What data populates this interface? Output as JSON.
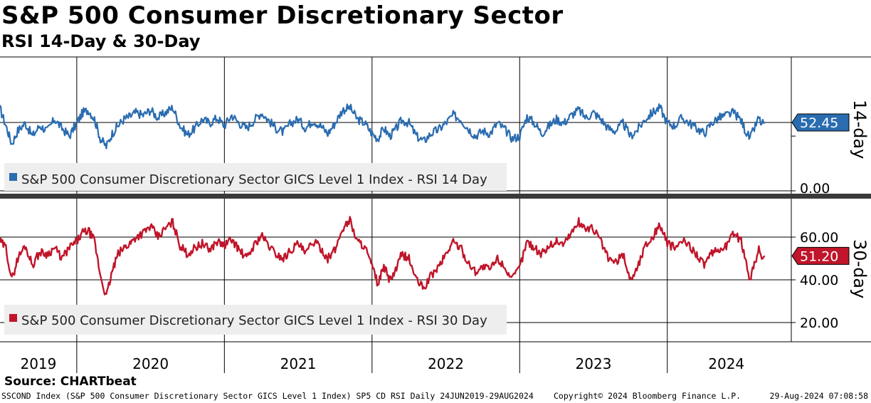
{
  "chart_data": [
    {
      "type": "line",
      "title": "S&P 500 Consumer Discretionary Sector",
      "subtitle": "RSI 14-Day & 30-Day",
      "panel_label": "14-day",
      "series": [
        {
          "name": "S&P 500 Consumer Discretionary Sector GICS Level 1 Index - RSI 14 Day",
          "color": "#2a6cb0",
          "last_value": "52.45",
          "points": [
            [
              2019.48,
              63
            ],
            [
              2019.52,
              50
            ],
            [
              2019.56,
              36
            ],
            [
              2019.6,
              46
            ],
            [
              2019.65,
              52
            ],
            [
              2019.7,
              42
            ],
            [
              2019.75,
              50
            ],
            [
              2019.8,
              46
            ],
            [
              2019.85,
              55
            ],
            [
              2019.9,
              48
            ],
            [
              2019.95,
              42
            ],
            [
              2020.0,
              52
            ],
            [
              2020.04,
              60
            ],
            [
              2020.08,
              62
            ],
            [
              2020.12,
              55
            ],
            [
              2020.16,
              40
            ],
            [
              2020.2,
              34
            ],
            [
              2020.24,
              44
            ],
            [
              2020.28,
              50
            ],
            [
              2020.32,
              55
            ],
            [
              2020.36,
              57
            ],
            [
              2020.4,
              60
            ],
            [
              2020.45,
              58
            ],
            [
              2020.5,
              62
            ],
            [
              2020.55,
              56
            ],
            [
              2020.6,
              60
            ],
            [
              2020.65,
              64
            ],
            [
              2020.7,
              50
            ],
            [
              2020.75,
              43
            ],
            [
              2020.8,
              48
            ],
            [
              2020.85,
              55
            ],
            [
              2020.9,
              52
            ],
            [
              2020.95,
              56
            ],
            [
              2021.0,
              50
            ],
            [
              2021.05,
              58
            ],
            [
              2021.1,
              52
            ],
            [
              2021.15,
              48
            ],
            [
              2021.2,
              54
            ],
            [
              2021.25,
              60
            ],
            [
              2021.3,
              54
            ],
            [
              2021.35,
              48
            ],
            [
              2021.4,
              45
            ],
            [
              2021.45,
              52
            ],
            [
              2021.5,
              55
            ],
            [
              2021.55,
              48
            ],
            [
              2021.6,
              54
            ],
            [
              2021.65,
              50
            ],
            [
              2021.7,
              44
            ],
            [
              2021.75,
              52
            ],
            [
              2021.8,
              62
            ],
            [
              2021.85,
              64
            ],
            [
              2021.9,
              55
            ],
            [
              2021.95,
              52
            ],
            [
              2022.0,
              44
            ],
            [
              2022.04,
              40
            ],
            [
              2022.08,
              48
            ],
            [
              2022.12,
              42
            ],
            [
              2022.16,
              47
            ],
            [
              2022.2,
              54
            ],
            [
              2022.25,
              52
            ],
            [
              2022.3,
              42
            ],
            [
              2022.35,
              38
            ],
            [
              2022.4,
              44
            ],
            [
              2022.45,
              47
            ],
            [
              2022.5,
              52
            ],
            [
              2022.55,
              58
            ],
            [
              2022.6,
              55
            ],
            [
              2022.65,
              48
            ],
            [
              2022.7,
              42
            ],
            [
              2022.75,
              46
            ],
            [
              2022.8,
              44
            ],
            [
              2022.85,
              52
            ],
            [
              2022.9,
              47
            ],
            [
              2022.95,
              40
            ],
            [
              2023.0,
              42
            ],
            [
              2023.05,
              57
            ],
            [
              2023.1,
              52
            ],
            [
              2023.15,
              44
            ],
            [
              2023.2,
              50
            ],
            [
              2023.25,
              55
            ],
            [
              2023.3,
              52
            ],
            [
              2023.35,
              58
            ],
            [
              2023.4,
              62
            ],
            [
              2023.45,
              56
            ],
            [
              2023.5,
              60
            ],
            [
              2023.55,
              55
            ],
            [
              2023.6,
              48
            ],
            [
              2023.65,
              46
            ],
            [
              2023.7,
              52
            ],
            [
              2023.75,
              42
            ],
            [
              2023.8,
              47
            ],
            [
              2023.85,
              55
            ],
            [
              2023.9,
              60
            ],
            [
              2023.95,
              64
            ],
            [
              2024.0,
              52
            ],
            [
              2024.05,
              50
            ],
            [
              2024.1,
              56
            ],
            [
              2024.15,
              52
            ],
            [
              2024.2,
              48
            ],
            [
              2024.25,
              44
            ],
            [
              2024.3,
              52
            ],
            [
              2024.35,
              56
            ],
            [
              2024.4,
              58
            ],
            [
              2024.45,
              60
            ],
            [
              2024.5,
              54
            ],
            [
              2024.53,
              46
            ],
            [
              2024.56,
              40
            ],
            [
              2024.59,
              48
            ],
            [
              2024.62,
              56
            ],
            [
              2024.64,
              51
            ],
            [
              2024.66,
              52.45
            ]
          ]
        }
      ],
      "y_axis": {
        "labels": [
          "0.00"
        ]
      },
      "ylim": [
        0,
        70
      ]
    },
    {
      "type": "line",
      "panel_label": "30-day",
      "series": [
        {
          "name": "S&P 500 Consumer Discretionary Sector GICS Level 1 Index - RSI 30 Day",
          "color": "#c0152a",
          "last_value": "51.20",
          "points": [
            [
              2019.48,
              58
            ],
            [
              2019.52,
              55
            ],
            [
              2019.56,
              40
            ],
            [
              2019.6,
              50
            ],
            [
              2019.65,
              56
            ],
            [
              2019.7,
              47
            ],
            [
              2019.75,
              53
            ],
            [
              2019.8,
              52
            ],
            [
              2019.85,
              55
            ],
            [
              2019.9,
              50
            ],
            [
              2019.95,
              55
            ],
            [
              2020.0,
              58
            ],
            [
              2020.04,
              62
            ],
            [
              2020.08,
              63
            ],
            [
              2020.12,
              58
            ],
            [
              2020.16,
              42
            ],
            [
              2020.2,
              32
            ],
            [
              2020.24,
              44
            ],
            [
              2020.28,
              52
            ],
            [
              2020.32,
              55
            ],
            [
              2020.36,
              57
            ],
            [
              2020.4,
              60
            ],
            [
              2020.45,
              62
            ],
            [
              2020.5,
              65
            ],
            [
              2020.55,
              60
            ],
            [
              2020.6,
              64
            ],
            [
              2020.65,
              67
            ],
            [
              2020.7,
              56
            ],
            [
              2020.75,
              52
            ],
            [
              2020.8,
              55
            ],
            [
              2020.85,
              57
            ],
            [
              2020.9,
              54
            ],
            [
              2020.95,
              58
            ],
            [
              2021.0,
              56
            ],
            [
              2021.05,
              59
            ],
            [
              2021.1,
              54
            ],
            [
              2021.15,
              50
            ],
            [
              2021.2,
              56
            ],
            [
              2021.25,
              61
            ],
            [
              2021.3,
              56
            ],
            [
              2021.35,
              52
            ],
            [
              2021.4,
              50
            ],
            [
              2021.45,
              54
            ],
            [
              2021.5,
              57
            ],
            [
              2021.55,
              52
            ],
            [
              2021.6,
              58
            ],
            [
              2021.65,
              55
            ],
            [
              2021.7,
              50
            ],
            [
              2021.75,
              54
            ],
            [
              2021.8,
              64
            ],
            [
              2021.85,
              68
            ],
            [
              2021.9,
              58
            ],
            [
              2021.95,
              56
            ],
            [
              2022.0,
              46
            ],
            [
              2022.04,
              38
            ],
            [
              2022.08,
              46
            ],
            [
              2022.12,
              40
            ],
            [
              2022.16,
              44
            ],
            [
              2022.2,
              52
            ],
            [
              2022.25,
              50
            ],
            [
              2022.3,
              40
            ],
            [
              2022.35,
              36
            ],
            [
              2022.4,
              42
            ],
            [
              2022.45,
              46
            ],
            [
              2022.5,
              52
            ],
            [
              2022.55,
              58
            ],
            [
              2022.6,
              55
            ],
            [
              2022.65,
              48
            ],
            [
              2022.7,
              44
            ],
            [
              2022.75,
              46
            ],
            [
              2022.8,
              45
            ],
            [
              2022.85,
              50
            ],
            [
              2022.9,
              46
            ],
            [
              2022.95,
              40
            ],
            [
              2023.0,
              46
            ],
            [
              2023.05,
              58
            ],
            [
              2023.1,
              55
            ],
            [
              2023.15,
              52
            ],
            [
              2023.2,
              56
            ],
            [
              2023.25,
              58
            ],
            [
              2023.3,
              57
            ],
            [
              2023.35,
              62
            ],
            [
              2023.4,
              67
            ],
            [
              2023.45,
              64
            ],
            [
              2023.5,
              64
            ],
            [
              2023.55,
              58
            ],
            [
              2023.6,
              50
            ],
            [
              2023.65,
              48
            ],
            [
              2023.7,
              52
            ],
            [
              2023.75,
              40
            ],
            [
              2023.8,
              46
            ],
            [
              2023.85,
              56
            ],
            [
              2023.9,
              60
            ],
            [
              2023.95,
              66
            ],
            [
              2024.0,
              57
            ],
            [
              2024.05,
              55
            ],
            [
              2024.1,
              58
            ],
            [
              2024.15,
              56
            ],
            [
              2024.2,
              52
            ],
            [
              2024.25,
              47
            ],
            [
              2024.3,
              52
            ],
            [
              2024.35,
              54
            ],
            [
              2024.4,
              56
            ],
            [
              2024.45,
              62
            ],
            [
              2024.5,
              58
            ],
            [
              2024.53,
              50
            ],
            [
              2024.56,
              40
            ],
            [
              2024.59,
              48
            ],
            [
              2024.62,
              54
            ],
            [
              2024.64,
              50
            ],
            [
              2024.66,
              51.2
            ]
          ]
        }
      ],
      "y_axis": {
        "labels": [
          "60.00",
          "40.00",
          "20.00"
        ],
        "values": [
          60,
          40,
          20
        ]
      },
      "ylim": [
        15,
        75
      ]
    }
  ],
  "x_axis": {
    "year_labels": [
      "2019",
      "2020",
      "2021",
      "2022",
      "2023",
      "2024"
    ],
    "label_positions_years": [
      2019.74,
      2020.5,
      2021.5,
      2022.5,
      2023.5,
      2024.4
    ],
    "boundaries_years": [
      2020,
      2021,
      2022,
      2023,
      2024
    ],
    "range": [
      2019.48,
      2024.84
    ]
  },
  "source": "Source: CHARTbeat",
  "footer": {
    "left": "SSCOND Index (S&P 500 Consumer Discretionary Sector GICS Level 1 Index) SP5 CD RSI  Daily 24JUN2019-29AUG2024",
    "middle": "Copyright© 2024 Bloomberg Finance L.P.",
    "right": "29-Aug-2024 07:08:58"
  }
}
